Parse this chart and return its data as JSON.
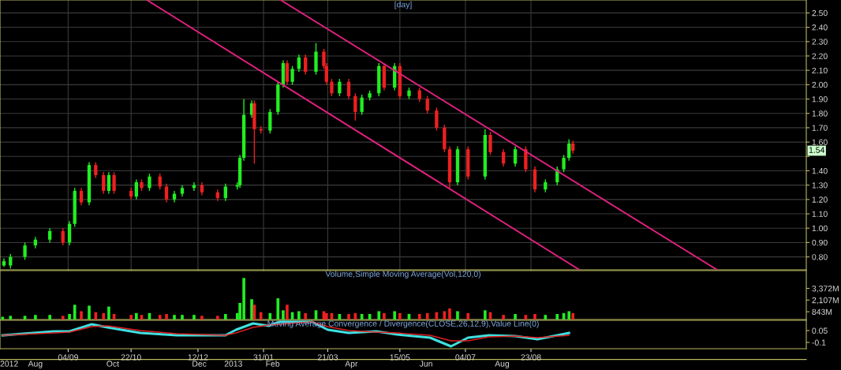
{
  "chart_data": [
    {
      "type": "candlestick",
      "title": "[day]",
      "x": [
        "2012-07-17",
        "2012-07-22",
        "2012-08-02",
        "2012-08-10",
        "2012-08-21",
        "2012-08-31",
        "2012-09-05",
        "2012-09-09",
        "2012-09-14",
        "2012-09-20",
        "2012-09-25",
        "2012-10-01",
        "2012-10-05",
        "2012-10-09",
        "2012-10-22",
        "2012-10-26",
        "2012-10-30",
        "2012-11-05",
        "2012-11-13",
        "2012-11-18",
        "2012-11-24",
        "2012-11-30",
        "2012-12-09",
        "2012-12-15",
        "2012-12-27",
        "2013-01-02",
        "2013-01-11",
        "2013-01-13",
        "2013-01-16",
        "2013-01-22",
        "2013-01-24",
        "2013-01-29",
        "2013-02-05",
        "2013-02-11",
        "2013-02-15",
        "2013-02-18",
        "2013-02-22",
        "2013-02-27",
        "2013-03-04",
        "2013-03-12",
        "2013-03-18",
        "2013-03-20",
        "2013-03-24",
        "2013-03-30",
        "2013-04-06",
        "2013-04-11",
        "2013-04-16",
        "2013-04-22",
        "2013-04-29",
        "2013-05-03",
        "2013-05-11",
        "2013-05-15",
        "2013-05-22",
        "2013-05-30",
        "2013-06-05",
        "2013-06-12",
        "2013-06-18",
        "2013-06-22",
        "2013-06-28",
        "2013-07-06",
        "2013-07-19",
        "2013-07-23",
        "2013-08-02",
        "2013-08-11",
        "2013-08-19",
        "2013-08-26",
        "2013-09-03",
        "2013-09-12",
        "2013-09-17",
        "2013-09-21",
        "2013-09-24"
      ],
      "ohlc": [
        [
          0.74,
          0.79,
          0.73,
          0.77
        ],
        [
          0.74,
          0.82,
          0.72,
          0.8
        ],
        [
          0.8,
          0.9,
          0.78,
          0.88
        ],
        [
          0.88,
          0.94,
          0.86,
          0.92
        ],
        [
          0.92,
          1.0,
          0.9,
          0.98
        ],
        [
          0.98,
          1.0,
          0.88,
          0.9
        ],
        [
          0.9,
          1.05,
          0.88,
          1.03
        ],
        [
          1.03,
          1.28,
          1.01,
          1.26
        ],
        [
          1.26,
          1.28,
          1.16,
          1.18
        ],
        [
          1.18,
          1.46,
          1.16,
          1.44
        ],
        [
          1.44,
          1.46,
          1.35,
          1.37
        ],
        [
          1.37,
          1.39,
          1.24,
          1.26
        ],
        [
          1.26,
          1.39,
          1.24,
          1.37
        ],
        [
          1.37,
          1.39,
          1.24,
          1.26
        ],
        [
          1.26,
          1.28,
          1.2,
          1.22
        ],
        [
          1.22,
          1.34,
          1.2,
          1.32
        ],
        [
          1.32,
          1.34,
          1.26,
          1.28
        ],
        [
          1.28,
          1.38,
          1.26,
          1.36
        ],
        [
          1.36,
          1.38,
          1.27,
          1.29
        ],
        [
          1.29,
          1.31,
          1.18,
          1.2
        ],
        [
          1.2,
          1.26,
          1.18,
          1.24
        ],
        [
          1.24,
          1.3,
          1.22,
          1.28
        ],
        [
          1.28,
          1.32,
          1.26,
          1.3
        ],
        [
          1.3,
          1.32,
          1.23,
          1.25
        ],
        [
          1.25,
          1.27,
          1.19,
          1.21
        ],
        [
          1.21,
          1.31,
          1.19,
          1.29
        ],
        [
          1.29,
          1.32,
          1.27,
          1.3
        ],
        [
          1.3,
          1.51,
          1.28,
          1.49
        ],
        [
          1.49,
          1.9,
          1.47,
          1.79
        ],
        [
          1.79,
          1.89,
          1.77,
          1.87
        ],
        [
          1.87,
          1.89,
          1.45,
          1.69
        ],
        [
          1.69,
          1.71,
          1.66,
          1.68
        ],
        [
          1.68,
          1.83,
          1.66,
          1.81
        ],
        [
          1.81,
          2.02,
          1.79,
          2.0
        ],
        [
          2.0,
          2.17,
          1.98,
          2.15
        ],
        [
          2.15,
          2.17,
          2.0,
          2.02
        ],
        [
          2.02,
          2.13,
          2.0,
          2.11
        ],
        [
          2.11,
          2.21,
          2.09,
          2.19
        ],
        [
          2.19,
          2.21,
          2.07,
          2.09
        ],
        [
          2.09,
          2.29,
          2.07,
          2.23
        ],
        [
          2.23,
          2.25,
          2.11,
          2.13
        ],
        [
          2.13,
          2.15,
          2.0,
          2.02
        ],
        [
          2.02,
          2.04,
          1.92,
          1.94
        ],
        [
          1.94,
          2.04,
          1.92,
          2.02
        ],
        [
          2.02,
          2.04,
          1.9,
          1.92
        ],
        [
          1.92,
          1.94,
          1.75,
          1.81
        ],
        [
          1.81,
          1.93,
          1.79,
          1.91
        ],
        [
          1.91,
          1.96,
          1.89,
          1.94
        ],
        [
          1.94,
          2.15,
          1.92,
          2.13
        ],
        [
          2.13,
          2.15,
          1.96,
          1.98
        ],
        [
          1.98,
          2.15,
          1.96,
          2.13
        ],
        [
          2.13,
          2.15,
          1.9,
          1.92
        ],
        [
          1.92,
          1.98,
          1.9,
          1.96
        ],
        [
          1.96,
          1.98,
          1.88,
          1.9
        ],
        [
          1.9,
          1.92,
          1.8,
          1.82
        ],
        [
          1.82,
          1.84,
          1.68,
          1.7
        ],
        [
          1.7,
          1.72,
          1.53,
          1.55
        ],
        [
          1.55,
          1.57,
          1.28,
          1.32
        ],
        [
          1.32,
          1.57,
          1.3,
          1.55
        ],
        [
          1.55,
          1.57,
          1.34,
          1.36
        ],
        [
          1.36,
          1.69,
          1.34,
          1.65
        ],
        [
          1.65,
          1.67,
          1.51,
          1.53
        ],
        [
          1.53,
          1.55,
          1.43,
          1.45
        ],
        [
          1.45,
          1.57,
          1.43,
          1.55
        ],
        [
          1.55,
          1.57,
          1.39,
          1.41
        ],
        [
          1.41,
          1.43,
          1.25,
          1.27
        ],
        [
          1.27,
          1.34,
          1.25,
          1.32
        ],
        [
          1.32,
          1.43,
          1.3,
          1.41
        ],
        [
          1.41,
          1.51,
          1.39,
          1.49
        ],
        [
          1.49,
          1.62,
          1.47,
          1.59
        ],
        [
          1.59,
          1.61,
          1.52,
          1.54
        ]
      ],
      "colors": [
        "#22ee22",
        "#22ee22",
        "#22ee22",
        "#22ee22",
        "#22ee22",
        "#ee2020",
        "#22ee22",
        "#22ee22",
        "#ee2020",
        "#22ee22",
        "#ee2020",
        "#ee2020",
        "#22ee22",
        "#ee2020",
        "#ee2020",
        "#22ee22",
        "#ee2020",
        "#22ee22",
        "#ee2020",
        "#ee2020",
        "#22ee22",
        "#22ee22",
        "#22ee22",
        "#ee2020",
        "#ee2020",
        "#22ee22",
        "#22ee22",
        "#22ee22",
        "#22ee22",
        "#22ee22",
        "#ee2020",
        "#ee2020",
        "#22ee22",
        "#22ee22",
        "#22ee22",
        "#ee2020",
        "#22ee22",
        "#22ee22",
        "#ee2020",
        "#22ee22",
        "#ee2020",
        "#ee2020",
        "#ee2020",
        "#22ee22",
        "#ee2020",
        "#ee2020",
        "#22ee22",
        "#22ee22",
        "#22ee22",
        "#ee2020",
        "#22ee22",
        "#ee2020",
        "#22ee22",
        "#ee2020",
        "#ee2020",
        "#ee2020",
        "#ee2020",
        "#ee2020",
        "#22ee22",
        "#ee2020",
        "#22ee22",
        "#ee2020",
        "#ee2020",
        "#22ee22",
        "#ee2020",
        "#ee2020",
        "#22ee22",
        "#22ee22",
        "#22ee22",
        "#22ee22",
        "#ee2020"
      ],
      "series": [
        {
          "type": "line",
          "color": "#e0207f",
          "x": [
            "2012-11-03",
            "2013-09-29"
          ],
          "values": [
            2.59,
            0.71
          ]
        },
        {
          "type": "line",
          "color": "#e0207f",
          "x": [
            "2013-02-13",
            "2014-01-12"
          ],
          "values": [
            2.59,
            0.71
          ]
        }
      ],
      "annotations": [
        {
          "text": "1.54",
          "y": 1.54
        }
      ],
      "xlim": [
        "2012-07-14",
        "2014-03-21"
      ],
      "ylim": [
        0.71,
        2.59
      ],
      "xticks": [
        {
          "value": "2012-09-04",
          "label": null
        },
        {
          "value": "2012-10-22",
          "label": null
        },
        {
          "value": "2012-12-12",
          "label": null
        },
        {
          "value": "2013-01-31",
          "label": null
        },
        {
          "value": "2013-03-21",
          "label": null
        },
        {
          "value": "2013-05-15",
          "label": null
        },
        {
          "value": "2013-07-04",
          "label": null
        },
        {
          "value": "2013-08-23",
          "label": null
        }
      ],
      "yticks": [
        {
          "value": 0.8,
          "label": "0.80"
        },
        {
          "value": 0.9,
          "label": "0.90"
        },
        {
          "value": 1.0,
          "label": "1.00"
        },
        {
          "value": 1.1,
          "label": "1.10"
        },
        {
          "value": 1.2,
          "label": "1.20"
        },
        {
          "value": 1.3,
          "label": "1.30"
        },
        {
          "value": 1.4,
          "label": "1.40"
        },
        {
          "value": 1.5,
          "label": null
        },
        {
          "value": 1.6,
          "label": "1.60"
        },
        {
          "value": 1.7,
          "label": "1.70"
        },
        {
          "value": 1.8,
          "label": "1.80"
        },
        {
          "value": 1.9,
          "label": "1.90"
        },
        {
          "value": 2.0,
          "label": "2.00"
        },
        {
          "value": 2.1,
          "label": "2.10"
        },
        {
          "value": 2.2,
          "label": "2.20"
        },
        {
          "value": 2.3,
          "label": "2.30"
        },
        {
          "value": 2.4,
          "label": "2.40"
        },
        {
          "value": 2.5,
          "label": "2.50"
        }
      ],
      "grid": true,
      "tick_labels": "y"
    },
    {
      "type": "bar",
      "title": "Volume,Simple Moving Average(Vol,120,0)",
      "x": [
        "2012-07-16",
        "2012-07-22",
        "2012-08-02",
        "2012-08-10",
        "2012-08-21",
        "2012-08-31",
        "2012-09-05",
        "2012-09-09",
        "2012-09-14",
        "2012-09-20",
        "2012-09-25",
        "2012-10-01",
        "2012-10-05",
        "2012-10-09",
        "2012-10-22",
        "2012-10-26",
        "2012-10-30",
        "2012-11-05",
        "2012-11-13",
        "2012-11-18",
        "2012-11-24",
        "2012-11-30",
        "2012-12-09",
        "2012-12-15",
        "2012-12-27",
        "2013-01-02",
        "2013-01-11",
        "2013-01-13",
        "2013-01-16",
        "2013-01-22",
        "2013-01-24",
        "2013-01-29",
        "2013-02-05",
        "2013-02-11",
        "2013-02-15",
        "2013-02-18",
        "2013-02-22",
        "2013-02-27",
        "2013-03-04",
        "2013-03-12",
        "2013-03-18",
        "2013-03-20",
        "2013-03-24",
        "2013-03-30",
        "2013-04-06",
        "2013-04-11",
        "2013-04-16",
        "2013-04-22",
        "2013-04-29",
        "2013-05-03",
        "2013-05-11",
        "2013-05-15",
        "2013-05-22",
        "2013-05-30",
        "2013-06-05",
        "2013-06-12",
        "2013-06-18",
        "2013-06-22",
        "2013-06-28",
        "2013-07-06",
        "2013-07-19",
        "2013-07-23",
        "2013-08-02",
        "2013-08-11",
        "2013-08-19",
        "2013-08-26",
        "2013-09-03",
        "2013-09-12",
        "2013-09-17",
        "2013-09-21",
        "2013-09-24"
      ],
      "values": [
        300,
        400,
        400,
        500,
        500,
        400,
        600,
        1600,
        900,
        1500,
        800,
        700,
        1400,
        600,
        500,
        700,
        500,
        700,
        500,
        600,
        500,
        500,
        500,
        400,
        400,
        600,
        700,
        1800,
        4500,
        2200,
        1600,
        800,
        700,
        2300,
        1000,
        1600,
        800,
        900,
        700,
        1000,
        900,
        700,
        700,
        600,
        600,
        700,
        600,
        600,
        900,
        700,
        900,
        700,
        600,
        600,
        700,
        800,
        900,
        1200,
        900,
        700,
        1000,
        800,
        500,
        600,
        500,
        600,
        500,
        600,
        700,
        900,
        700
      ],
      "colors": [
        "#22ee22",
        "#22ee22",
        "#22ee22",
        "#22ee22",
        "#22ee22",
        "#ee2020",
        "#22ee22",
        "#22ee22",
        "#ee2020",
        "#22ee22",
        "#ee2020",
        "#ee2020",
        "#22ee22",
        "#ee2020",
        "#ee2020",
        "#22ee22",
        "#ee2020",
        "#22ee22",
        "#ee2020",
        "#ee2020",
        "#22ee22",
        "#22ee22",
        "#22ee22",
        "#ee2020",
        "#ee2020",
        "#22ee22",
        "#22ee22",
        "#22ee22",
        "#22ee22",
        "#22ee22",
        "#ee2020",
        "#ee2020",
        "#22ee22",
        "#22ee22",
        "#22ee22",
        "#ee2020",
        "#22ee22",
        "#22ee22",
        "#ee2020",
        "#22ee22",
        "#ee2020",
        "#ee2020",
        "#ee2020",
        "#22ee22",
        "#ee2020",
        "#ee2020",
        "#22ee22",
        "#22ee22",
        "#22ee22",
        "#ee2020",
        "#22ee22",
        "#ee2020",
        "#22ee22",
        "#ee2020",
        "#ee2020",
        "#ee2020",
        "#ee2020",
        "#ee2020",
        "#22ee22",
        "#ee2020",
        "#22ee22",
        "#ee2020",
        "#ee2020",
        "#22ee22",
        "#ee2020",
        "#ee2020",
        "#22ee22",
        "#22ee22",
        "#22ee22",
        "#22ee22",
        "#ee2020"
      ],
      "xlim": [
        "2012-07-14",
        "2014-03-21"
      ],
      "ylim": [
        0,
        5300
      ],
      "yticks": [
        {
          "value": 843,
          "label": "843M"
        },
        {
          "value": 2107,
          "label": "2,107M"
        },
        {
          "value": 3372,
          "label": "3,372M"
        }
      ],
      "tick_labels": "y"
    },
    {
      "type": "line",
      "title": "Moving Average Convergence / Divergence(CLOSE,26,12,9),Value Line(0)",
      "x": [
        "2012-07-16",
        "2012-08-24",
        "2012-09-05",
        "2012-09-22",
        "2012-10-04",
        "2012-10-29",
        "2012-11-26",
        "2013-01-02",
        "2013-01-10",
        "2013-01-23",
        "2013-02-04",
        "2013-02-12",
        "2013-03-09",
        "2013-03-21",
        "2013-04-06",
        "2013-04-27",
        "2013-05-13",
        "2013-06-07",
        "2013-06-23",
        "2013-07-06",
        "2013-07-22",
        "2013-08-11",
        "2013-08-28",
        "2013-09-21"
      ],
      "series": [
        {
          "color": "#40e0e0",
          "values": [
            -0.01,
            0.04,
            0.04,
            0.13,
            0.09,
            0.02,
            -0.01,
            -0.01,
            0.06,
            0.14,
            0.11,
            0.16,
            0.16,
            0.06,
            0.02,
            0.04,
            0.0,
            -0.04,
            -0.15,
            -0.04,
            -0.01,
            -0.02,
            -0.06,
            0.02
          ]
        },
        {
          "color": "#e02020",
          "values": [
            -0.01,
            0.02,
            0.03,
            0.1,
            0.11,
            0.05,
            0.01,
            -0.01,
            0.02,
            0.09,
            0.12,
            0.13,
            0.16,
            0.1,
            0.05,
            0.03,
            0.02,
            -0.01,
            -0.08,
            -0.08,
            -0.03,
            -0.02,
            -0.04,
            -0.01
          ]
        }
      ],
      "xlim": [
        "2012-07-14",
        "2014-03-21"
      ],
      "ylim": [
        -0.18,
        0.18
      ],
      "yticks": [
        {
          "value": 0.05,
          "label": "0.05"
        },
        {
          "value": -0.1,
          "label": "-0.1"
        }
      ],
      "xticks": [
        {
          "value": "2012-09-04",
          "label": "04/09"
        },
        {
          "value": "2012-10-22",
          "label": "22/10"
        },
        {
          "value": "2012-12-12",
          "label": "12/12"
        },
        {
          "value": "2013-01-31",
          "label": "31/01"
        },
        {
          "value": "2013-03-21",
          "label": "21/03"
        },
        {
          "value": "2013-05-15",
          "label": "15/05"
        },
        {
          "value": "2013-07-04",
          "label": "04/07"
        },
        {
          "value": "2013-08-23",
          "label": "23/08"
        }
      ],
      "x2lim": [
        "2012-07-14",
        "2014-03-21"
      ],
      "x2ticks": [
        {
          "value": "2012-07-21",
          "label": "2012"
        },
        {
          "value": "2012-08-10",
          "label": "Aug"
        },
        {
          "value": "2012-10-08",
          "label": "Oct"
        },
        {
          "value": "2012-12-13",
          "label": "Dec"
        },
        {
          "value": "2013-01-08",
          "label": "2013"
        },
        {
          "value": "2013-02-07",
          "label": "Feb"
        },
        {
          "value": "2013-04-08",
          "label": "Apr"
        },
        {
          "value": "2013-06-04",
          "label": "Jun"
        },
        {
          "value": "2013-08-01",
          "label": "Aug"
        }
      ]
    }
  ]
}
